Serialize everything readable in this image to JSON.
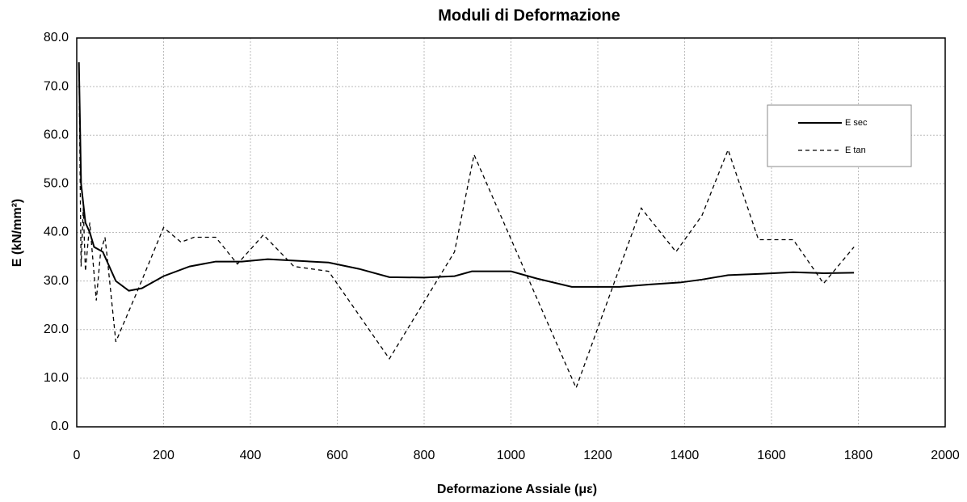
{
  "chart_data": {
    "type": "line",
    "title": "Moduli di Deformazione",
    "x_label": "Deformazione Assiale (με)",
    "y_label": "E (kN/mm²)",
    "xlim": [
      0,
      2000
    ],
    "xticks": [
      0,
      200,
      400,
      600,
      800,
      1000,
      1200,
      1400,
      1600,
      1800,
      2000
    ],
    "ylim": [
      0,
      80
    ],
    "yticks": [
      {
        "value": 0,
        "label": "0.0"
      },
      {
        "value": 10,
        "label": "10.0"
      },
      {
        "value": 20,
        "label": "20.0"
      },
      {
        "value": 30,
        "label": "30.0"
      },
      {
        "value": 40,
        "label": "40.0"
      },
      {
        "value": 50,
        "label": "50.0"
      },
      {
        "value": 60,
        "label": "60.0"
      },
      {
        "value": 70,
        "label": "70.0"
      },
      {
        "value": 80,
        "label": "80.0"
      }
    ],
    "grid": true,
    "series": [
      {
        "name": "E sec",
        "color": "#000000",
        "linestyle": "solid",
        "x": [
          5,
          10,
          20,
          30,
          40,
          60,
          90,
          120,
          150,
          200,
          260,
          320,
          380,
          440,
          500,
          580,
          650,
          720,
          800,
          870,
          910,
          1000,
          1060,
          1140,
          1200,
          1250,
          1320,
          1390,
          1440,
          1500,
          1580,
          1650,
          1720,
          1790
        ],
        "values": [
          75,
          50,
          42,
          40,
          37,
          36,
          30,
          28,
          28.5,
          31,
          33,
          34,
          34,
          34.5,
          34.2,
          33.8,
          32.5,
          30.8,
          30.7,
          31,
          32,
          32,
          30.5,
          28.8,
          28.8,
          28.8,
          29.3,
          29.7,
          30.3,
          31.2,
          31.5,
          31.8,
          31.6,
          31.7
        ]
      },
      {
        "name": "E tan",
        "color": "#000000",
        "linestyle": "dashed",
        "x": [
          5,
          10,
          15,
          20,
          30,
          45,
          55,
          65,
          70,
          90,
          140,
          200,
          240,
          270,
          320,
          370,
          430,
          500,
          580,
          720,
          870,
          915,
          1150,
          1300,
          1380,
          1440,
          1500,
          1570,
          1650,
          1720,
          1790
        ],
        "values": [
          75,
          33,
          45,
          32,
          42,
          26,
          36,
          39,
          35,
          17.5,
          28,
          41,
          38,
          39,
          39,
          33.5,
          39.5,
          33,
          32,
          14,
          36,
          56,
          8,
          45,
          36,
          43.5,
          57,
          38.5,
          38.5,
          29.5,
          37
        ]
      }
    ]
  }
}
